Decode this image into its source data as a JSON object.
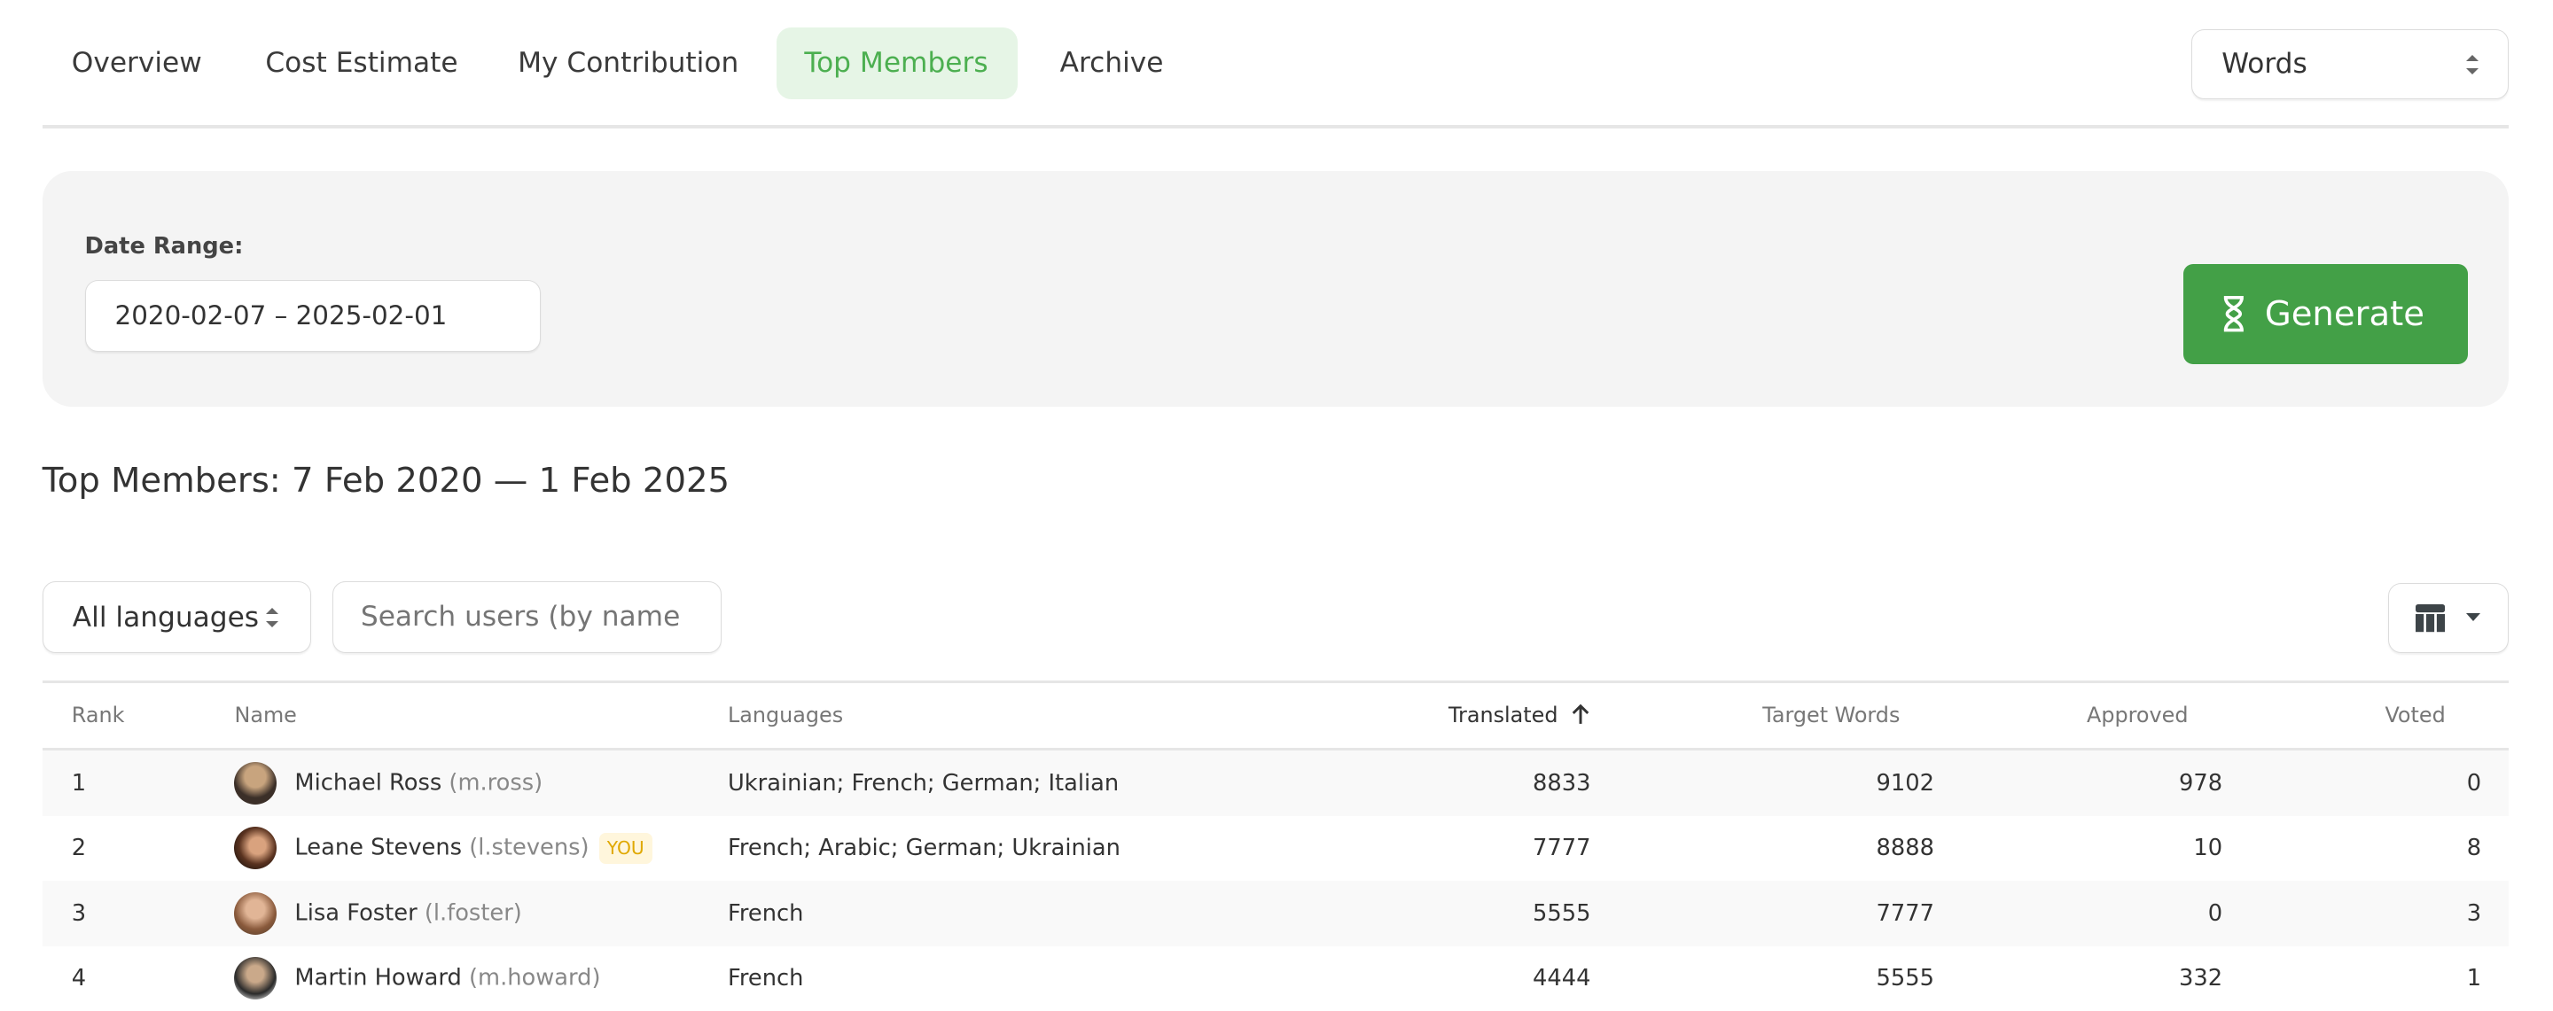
{
  "tabs": [
    {
      "label": "Overview",
      "active": false
    },
    {
      "label": "Cost Estimate",
      "active": false
    },
    {
      "label": "My Contribution",
      "active": false
    },
    {
      "label": "Top Members",
      "active": true
    },
    {
      "label": "Archive",
      "active": false
    }
  ],
  "unit_select": {
    "value": "Words"
  },
  "filter_panel": {
    "date_range_label": "Date Range:",
    "date_range_value": "2020-02-07 – 2025-02-01",
    "generate_label": "Generate",
    "generate_icon": "hourglass-icon"
  },
  "report": {
    "title": "Top Members: 7 Feb 2020 — 1 Feb 2025",
    "language_select": "All languages",
    "search_placeholder": "Search users (by name",
    "columns_button_icon": "table-columns-icon",
    "columns": [
      "Rank",
      "Name",
      "Languages",
      "Translated",
      "Target Words",
      "Approved",
      "Voted"
    ],
    "sorted_column": "Translated",
    "sort_direction": "ascending-arrow",
    "rows": [
      {
        "rank": "1",
        "name": "Michael Ross",
        "handle": "(m.ross)",
        "you": "",
        "languages": "Ukrainian; French; German; Italian",
        "translated": "8833",
        "target_words": "9102",
        "approved": "978",
        "voted": "0"
      },
      {
        "rank": "2",
        "name": "Leane Stevens",
        "handle": "(l.stevens)",
        "you": "YOU",
        "languages": "French; Arabic; German; Ukrainian",
        "translated": "7777",
        "target_words": "8888",
        "approved": "10",
        "voted": "8"
      },
      {
        "rank": "3",
        "name": "Lisa Foster",
        "handle": "(l.foster)",
        "you": "",
        "languages": "French",
        "translated": "5555",
        "target_words": "7777",
        "approved": "0",
        "voted": "3"
      },
      {
        "rank": "4",
        "name": "Martin Howard",
        "handle": "(m.howard)",
        "you": "",
        "languages": "French",
        "translated": "4444",
        "target_words": "5555",
        "approved": "332",
        "voted": "1"
      }
    ]
  },
  "colors": {
    "accent": "#4caf50",
    "button": "#43a047",
    "active_tab_bg": "#e6f5e6",
    "you_badge": "#e0a800"
  }
}
